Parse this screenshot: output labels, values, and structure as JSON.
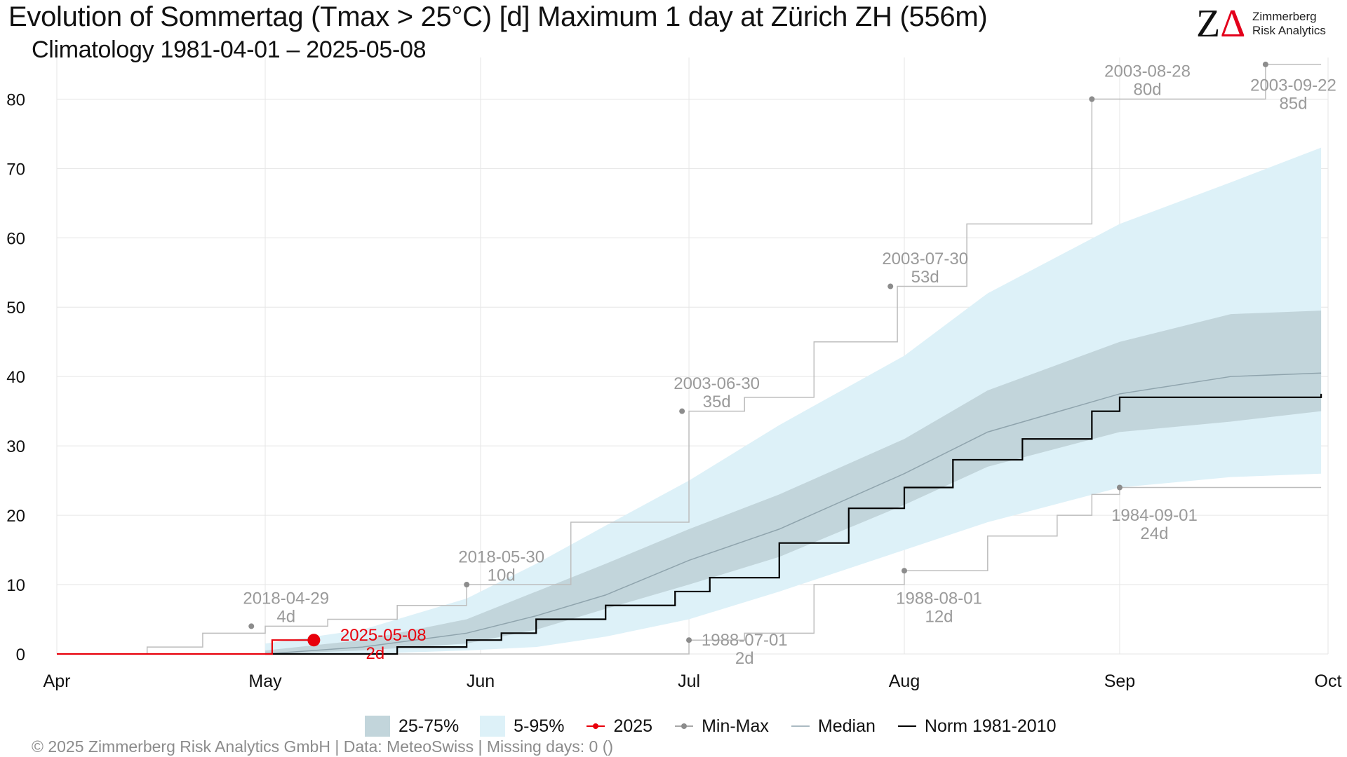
{
  "header": {
    "title": "Evolution of Sommertag (Tmax > 25°C) [d] Maximum 1 day at Zürich  ZH (556m)",
    "subtitle": "Climatology 1981-04-01 – 2025-05-08"
  },
  "logo": {
    "mark_z": "Z",
    "mark_delta": "Δ",
    "line1": "Zimmerberg",
    "line2": "Risk Analytics"
  },
  "footer": {
    "caption": "©  2025 Zimmerberg Risk Analytics GmbH | Data: MeteoSwiss | Missing days: 0 ()"
  },
  "colors": {
    "band_25_75": "#c2d5db",
    "band_5_95": "#ddf1f8",
    "current_year": "#e8000b",
    "minmax": "#bdbdbd",
    "minmax_label": "#9a9a9a",
    "median": "#8fa4ad",
    "norm": "#000000",
    "grid": "#e6e6e6"
  },
  "chart_data": {
    "type": "line",
    "x_unit": "day of year",
    "x_ticks": [
      {
        "label": "Apr",
        "doy": 91
      },
      {
        "label": "May",
        "doy": 121
      },
      {
        "label": "Jun",
        "doy": 152
      },
      {
        "label": "Jul",
        "doy": 182
      },
      {
        "label": "Aug",
        "doy": 213
      },
      {
        "label": "Sep",
        "doy": 244
      },
      {
        "label": "Oct",
        "doy": 274
      }
    ],
    "xlim": [
      91,
      274
    ],
    "ylim": [
      0,
      86
    ],
    "y_ticks": [
      0,
      10,
      20,
      30,
      40,
      50,
      60,
      70,
      80
    ],
    "grid": true,
    "legend": {
      "position": "bottom",
      "entries": [
        "25-75%",
        "5-95%",
        "2025",
        "Min-Max",
        "Median",
        "Norm 1981-2010"
      ]
    },
    "band_5_95": {
      "name": "5-95%",
      "doy": [
        121,
        135,
        150,
        160,
        170,
        182,
        195,
        213,
        225,
        244,
        260,
        273
      ],
      "lower": [
        0,
        0,
        0.5,
        1,
        2.5,
        5,
        9,
        15,
        19,
        24,
        25.5,
        26
      ],
      "upper": [
        1.5,
        3.5,
        8,
        13,
        18.5,
        25,
        33,
        43,
        52,
        62,
        68,
        73
      ]
    },
    "band_25_75": {
      "name": "25-75%",
      "doy": [
        121,
        135,
        150,
        160,
        170,
        182,
        195,
        213,
        225,
        244,
        260,
        273
      ],
      "lower": [
        0,
        0.5,
        1.5,
        3.5,
        6.5,
        10,
        14,
        21.5,
        27,
        32,
        33.5,
        35
      ],
      "upper": [
        0.5,
        2,
        5,
        9,
        13,
        18,
        23,
        31,
        38,
        45,
        49,
        49.5
      ]
    },
    "median": {
      "name": "Median",
      "doy": [
        121,
        135,
        150,
        160,
        170,
        182,
        195,
        213,
        225,
        244,
        260,
        273
      ],
      "values": [
        0,
        1,
        3,
        5.5,
        8.5,
        13.5,
        18,
        26,
        32,
        37.5,
        40,
        40.5
      ]
    },
    "norm": {
      "name": "Norm 1981-2010",
      "doy": [
        121,
        140,
        150,
        155,
        160,
        170,
        180,
        185,
        195,
        205,
        213,
        220,
        230,
        240,
        244,
        273
      ],
      "values": [
        0,
        1,
        2,
        3,
        5,
        7,
        9,
        11,
        16,
        21,
        24,
        28,
        31,
        35,
        37,
        37.5
      ]
    },
    "min_max": {
      "name": "Min-Max",
      "max_doy": [
        91,
        104,
        112,
        121,
        130,
        140,
        150,
        152,
        165,
        182,
        190,
        200,
        212,
        222,
        240,
        250,
        265,
        273
      ],
      "max_values": [
        0,
        1,
        3,
        4,
        5,
        7,
        10,
        10,
        19,
        35,
        37,
        45,
        53,
        62,
        80,
        80,
        85,
        85
      ],
      "min_doy": [
        91,
        182,
        190,
        200,
        213,
        225,
        235,
        240,
        244,
        273
      ],
      "min_values": [
        0,
        2,
        3,
        10,
        12,
        17,
        20,
        23,
        24,
        24
      ]
    },
    "current_year": {
      "name": "2025",
      "doy": [
        91,
        121,
        122,
        128
      ],
      "values": [
        0,
        0,
        2,
        2
      ]
    },
    "annotations": [
      {
        "date": "2018-04-29",
        "value": "4d",
        "doy": 119,
        "y": 4,
        "label_doy": 124,
        "label_y": 7
      },
      {
        "date": "2018-05-30",
        "value": "10d",
        "doy": 150,
        "y": 10,
        "label_doy": 155,
        "label_y": 13
      },
      {
        "date": "2003-06-30",
        "value": "35d",
        "doy": 181,
        "y": 35,
        "label_doy": 186,
        "label_y": 38
      },
      {
        "date": "2003-07-30",
        "value": "53d",
        "doy": 211,
        "y": 53,
        "label_doy": 216,
        "label_y": 56
      },
      {
        "date": "2003-08-28",
        "value": "80d",
        "doy": 240,
        "y": 80,
        "label_doy": 248,
        "label_y": 83
      },
      {
        "date": "2003-09-22",
        "value": "85d",
        "doy": 265,
        "y": 85,
        "label_doy": 269,
        "label_y": 81
      },
      {
        "date": "1988-07-01",
        "value": "2d",
        "doy": 182,
        "y": 2,
        "label_doy": 190,
        "label_y": 1
      },
      {
        "date": "1988-08-01",
        "value": "12d",
        "doy": 213,
        "y": 12,
        "label_doy": 218,
        "label_y": 7
      },
      {
        "date": "1984-09-01",
        "value": "24d",
        "doy": 244,
        "y": 24,
        "label_doy": 249,
        "label_y": 19
      },
      {
        "date": "2025-05-08",
        "value": "2d",
        "doy": 128,
        "y": 2,
        "label_doy": 133,
        "label_y": 1.5,
        "highlight": true
      }
    ]
  }
}
